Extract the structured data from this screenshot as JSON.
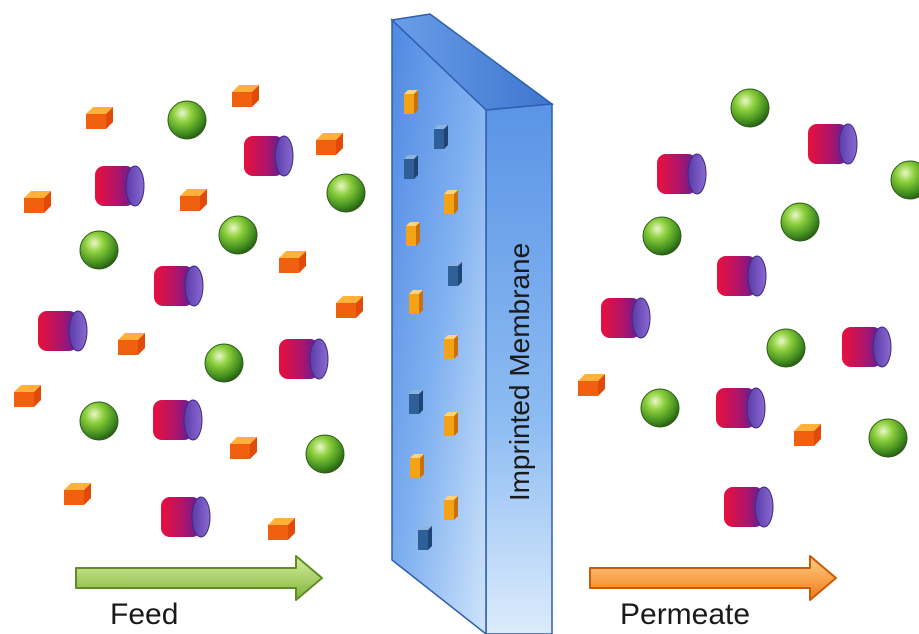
{
  "membrane": {
    "label": "Imprinted Membrane"
  },
  "feed": {
    "label": "Feed"
  },
  "permeate": {
    "label": "Permeate"
  }
}
